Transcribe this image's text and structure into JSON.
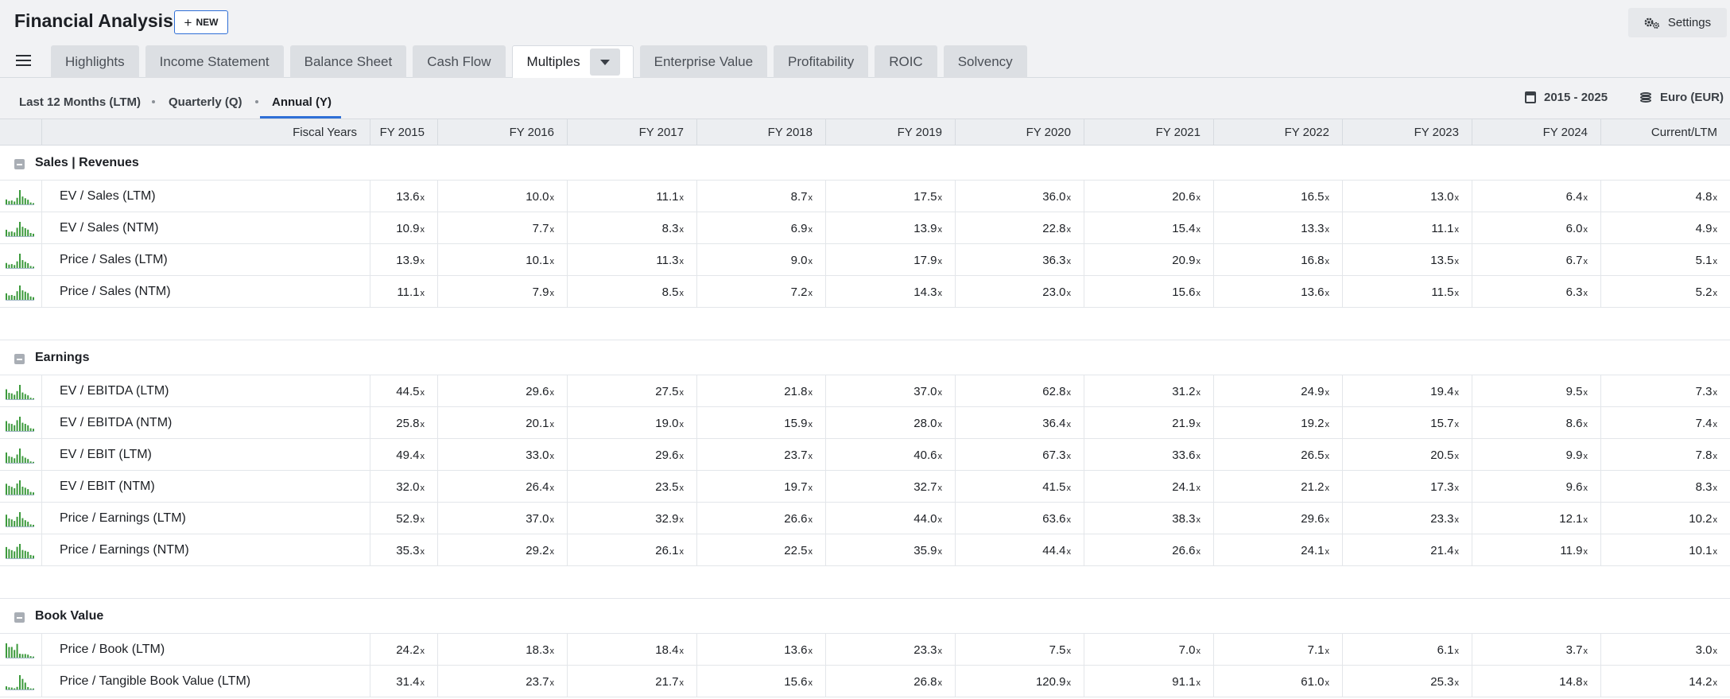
{
  "app": {
    "title": "Financial Analysis",
    "new_label": "NEW",
    "settings_label": "Settings"
  },
  "tabs": [
    {
      "label": "Highlights"
    },
    {
      "label": "Income Statement"
    },
    {
      "label": "Balance Sheet"
    },
    {
      "label": "Cash Flow"
    },
    {
      "label": "Multiples",
      "active": true
    },
    {
      "label": "Enterprise Value"
    },
    {
      "label": "Profitability"
    },
    {
      "label": "ROIC"
    },
    {
      "label": "Solvency"
    }
  ],
  "periods": [
    {
      "label": "Last 12 Months (LTM)"
    },
    {
      "label": "Quarterly (Q)"
    },
    {
      "label": "Annual (Y)",
      "active": true
    }
  ],
  "range_label": "2015 - 2025",
  "currency_label": "Euro (EUR)",
  "columns": [
    "Fiscal Years",
    "FY 2015",
    "FY 2016",
    "FY 2017",
    "FY 2018",
    "FY 2019",
    "FY 2020",
    "FY 2021",
    "FY 2022",
    "FY 2023",
    "FY 2024",
    "Current/LTM"
  ],
  "sections": [
    {
      "title": "Sales | Revenues",
      "rows": [
        {
          "label": "EV / Sales (LTM)",
          "values": [
            "13.6",
            "10.0",
            "11.1",
            "8.7",
            "17.5",
            "36.0",
            "20.6",
            "16.5",
            "13.0",
            "6.4",
            "4.8"
          ]
        },
        {
          "label": "EV / Sales (NTM)",
          "values": [
            "10.9",
            "7.7",
            "8.3",
            "6.9",
            "13.9",
            "22.8",
            "15.4",
            "13.3",
            "11.1",
            "6.0",
            "4.9"
          ]
        },
        {
          "label": "Price / Sales (LTM)",
          "values": [
            "13.9",
            "10.1",
            "11.3",
            "9.0",
            "17.9",
            "36.3",
            "20.9",
            "16.8",
            "13.5",
            "6.7",
            "5.1"
          ]
        },
        {
          "label": "Price / Sales (NTM)",
          "values": [
            "11.1",
            "7.9",
            "8.5",
            "7.2",
            "14.3",
            "23.0",
            "15.6",
            "13.6",
            "11.5",
            "6.3",
            "5.2"
          ]
        }
      ]
    },
    {
      "title": "Earnings",
      "rows": [
        {
          "label": "EV / EBITDA (LTM)",
          "values": [
            "44.5",
            "29.6",
            "27.5",
            "21.8",
            "37.0",
            "62.8",
            "31.2",
            "24.9",
            "19.4",
            "9.5",
            "7.3"
          ]
        },
        {
          "label": "EV / EBITDA (NTM)",
          "values": [
            "25.8",
            "20.1",
            "19.0",
            "15.9",
            "28.0",
            "36.4",
            "21.9",
            "19.2",
            "15.7",
            "8.6",
            "7.4"
          ]
        },
        {
          "label": "EV / EBIT (LTM)",
          "values": [
            "49.4",
            "33.0",
            "29.6",
            "23.7",
            "40.6",
            "67.3",
            "33.6",
            "26.5",
            "20.5",
            "9.9",
            "7.8"
          ]
        },
        {
          "label": "EV / EBIT (NTM)",
          "values": [
            "32.0",
            "26.4",
            "23.5",
            "19.7",
            "32.7",
            "41.5",
            "24.1",
            "21.2",
            "17.3",
            "9.6",
            "8.3"
          ]
        },
        {
          "label": "Price / Earnings (LTM)",
          "values": [
            "52.9",
            "37.0",
            "32.9",
            "26.6",
            "44.0",
            "63.6",
            "38.3",
            "29.6",
            "23.3",
            "12.1",
            "10.2"
          ]
        },
        {
          "label": "Price / Earnings (NTM)",
          "values": [
            "35.3",
            "29.2",
            "26.1",
            "22.5",
            "35.9",
            "44.4",
            "26.6",
            "24.1",
            "21.4",
            "11.9",
            "10.1"
          ]
        }
      ]
    },
    {
      "title": "Book Value",
      "rows": [
        {
          "label": "Price / Book (LTM)",
          "values": [
            "24.2",
            "18.3",
            "18.4",
            "13.6",
            "23.3",
            "7.5",
            "7.0",
            "7.1",
            "6.1",
            "3.7",
            "3.0"
          ]
        },
        {
          "label": "Price / Tangible Book Value (LTM)",
          "values": [
            "31.4",
            "23.7",
            "21.7",
            "15.6",
            "26.8",
            "120.9",
            "91.1",
            "61.0",
            "25.3",
            "14.8",
            "14.2"
          ]
        }
      ]
    }
  ],
  "multiple_suffix": "x",
  "colors": {
    "accent": "#2f6fd6",
    "sparkline": "#3c9a3c"
  }
}
